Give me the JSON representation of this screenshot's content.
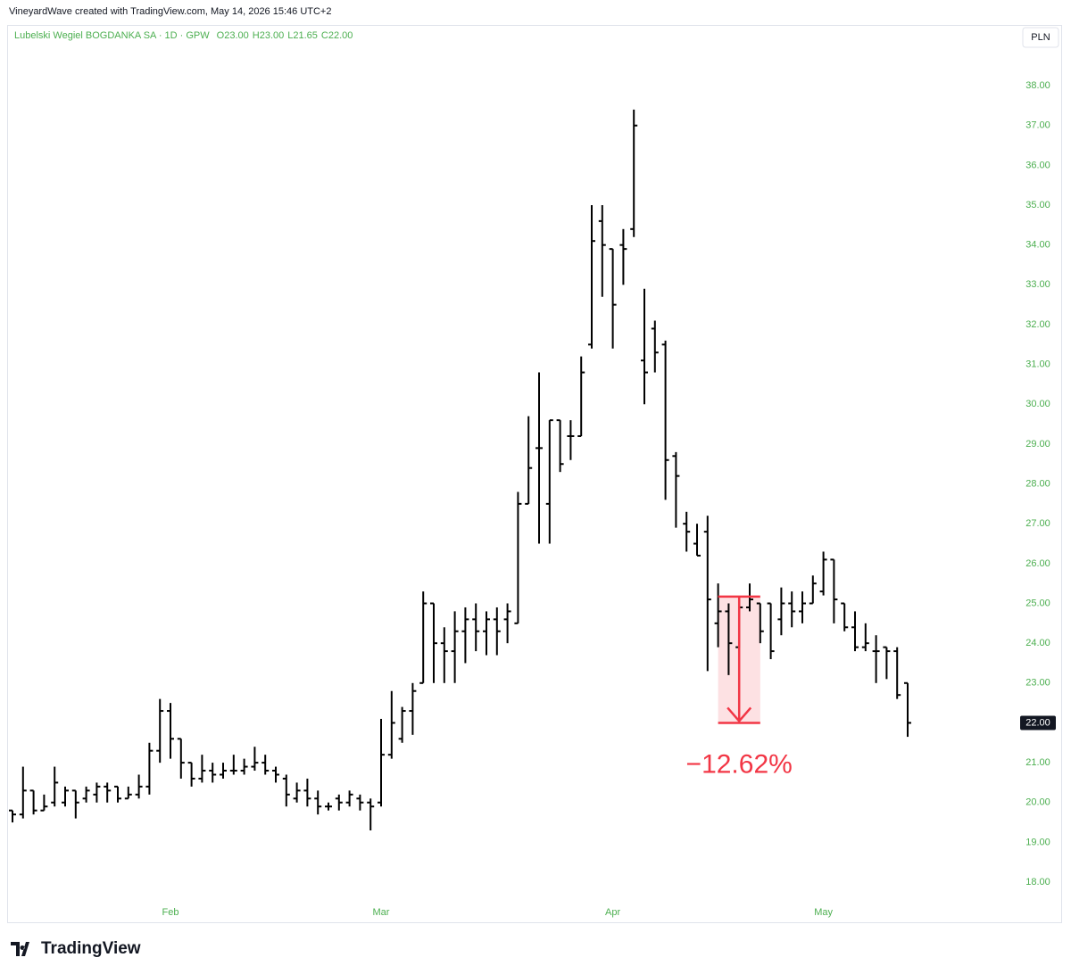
{
  "header": "VineyardWave created with TradingView.com, May 14, 2026 15:46 UTC+2",
  "footer": "TradingView",
  "chart_data": {
    "type": "ohlc",
    "legend_name": "Lubelski Wegiel BOGDANKA SA · 1D · GPW",
    "ohlc_legend": [
      {
        "key": "O",
        "value": 23,
        "label": "23.00"
      },
      {
        "key": "H",
        "value": 23,
        "label": "23.00"
      },
      {
        "key": "L",
        "value": 21.65,
        "label": "21.65"
      },
      {
        "key": "C",
        "value": 22,
        "label": "22.00"
      }
    ],
    "currency": "PLN",
    "color": "#000000",
    "categories": [
      null,
      null,
      null,
      null,
      null,
      null,
      null,
      null,
      null,
      null,
      null,
      null,
      null,
      null,
      null,
      "Feb",
      null,
      null,
      null,
      null,
      null,
      null,
      null,
      null,
      null,
      null,
      null,
      null,
      null,
      null,
      null,
      null,
      null,
      null,
      null,
      "Mar",
      null,
      null,
      null,
      null,
      null,
      null,
      null,
      null,
      null,
      null,
      null,
      null,
      null,
      null,
      null,
      null,
      null,
      null,
      null,
      null,
      null,
      "Apr",
      null,
      null,
      null,
      null,
      null,
      null,
      null,
      null,
      null,
      null,
      null,
      null,
      null,
      null,
      null,
      null,
      null,
      null,
      null,
      "May",
      null,
      null,
      null,
      null,
      null,
      null,
      null,
      null
    ],
    "open": [
      19.8,
      19.7,
      20.3,
      19.8,
      20.0,
      20.0,
      20.3,
      20.1,
      20.2,
      20.4,
      20.4,
      20.1,
      20.2,
      20.4,
      21.3,
      22.3,
      21.6,
      21.0,
      20.6,
      20.8,
      20.7,
      20.8,
      20.8,
      20.9,
      21.0,
      20.8,
      20.6,
      20.1,
      20.3,
      20.1,
      19.9,
      20.1,
      20.0,
      20.1,
      20.0,
      20.0,
      21.2,
      21.6,
      22.3,
      23.0,
      25.0,
      24.0,
      23.8,
      24.3,
      24.6,
      24.3,
      24.6,
      24.6,
      24.5,
      27.5,
      28.9,
      27.5,
      29.6,
      29.2,
      29.2,
      31.5,
      34.6,
      33.9,
      34.0,
      34.4,
      31.1,
      31.9,
      31.5,
      28.7,
      27.0,
      26.5,
      26.8,
      24.5,
      24.8,
      23.9,
      24.9,
      25.0,
      25.0,
      24.6,
      25.0,
      24.8,
      25.0,
      25.3,
      26.1,
      25.0,
      24.4,
      23.9,
      23.8,
      23.9,
      23.8,
      23.0
    ],
    "high": [
      19.8,
      20.9,
      20.3,
      20.2,
      20.9,
      20.4,
      20.3,
      20.4,
      20.5,
      20.5,
      20.4,
      20.4,
      20.7,
      21.5,
      22.6,
      22.5,
      21.6,
      21.0,
      21.2,
      21.0,
      21.0,
      21.2,
      21.1,
      21.4,
      21.2,
      20.9,
      20.7,
      20.5,
      20.6,
      20.3,
      20.0,
      20.2,
      20.3,
      20.2,
      20.1,
      22.1,
      22.8,
      22.4,
      23.0,
      25.3,
      25.0,
      24.4,
      24.8,
      24.9,
      25.0,
      24.8,
      24.9,
      25.0,
      27.8,
      29.7,
      30.8,
      29.6,
      29.6,
      29.6,
      31.2,
      35.0,
      35.0,
      33.9,
      34.4,
      37.4,
      32.9,
      32.1,
      31.6,
      28.8,
      27.3,
      27.0,
      27.2,
      25.5,
      25.0,
      25.1,
      25.5,
      25.0,
      25.0,
      25.4,
      25.3,
      25.3,
      25.7,
      26.3,
      26.1,
      25.0,
      24.8,
      24.5,
      24.2,
      23.9,
      23.9,
      23.0
    ],
    "low": [
      19.5,
      19.6,
      19.7,
      19.8,
      19.9,
      19.9,
      19.6,
      20.0,
      20.0,
      20.0,
      20.0,
      20.1,
      20.1,
      20.2,
      21.0,
      21.1,
      20.6,
      20.4,
      20.5,
      20.5,
      20.6,
      20.7,
      20.7,
      20.8,
      20.7,
      20.5,
      19.9,
      20.0,
      19.9,
      19.7,
      19.8,
      19.8,
      19.9,
      19.8,
      19.3,
      19.9,
      21.1,
      21.5,
      21.7,
      23.0,
      23.0,
      23.0,
      23.0,
      23.5,
      23.8,
      23.7,
      23.7,
      24.0,
      24.5,
      27.5,
      26.5,
      26.5,
      28.3,
      28.6,
      29.2,
      31.4,
      32.7,
      31.4,
      33.0,
      34.2,
      30.0,
      30.8,
      27.6,
      26.9,
      26.3,
      26.2,
      23.3,
      23.9,
      23.2,
      23.9,
      24.8,
      24.0,
      23.6,
      24.2,
      24.4,
      24.5,
      25.0,
      25.2,
      24.5,
      24.3,
      23.8,
      23.8,
      23.0,
      23.1,
      22.6,
      21.65
    ],
    "close": [
      19.7,
      20.3,
      19.8,
      19.9,
      20.5,
      20.3,
      20.0,
      20.3,
      20.4,
      20.3,
      20.1,
      20.2,
      20.4,
      21.3,
      22.3,
      21.6,
      21.0,
      20.6,
      20.8,
      20.7,
      20.8,
      20.8,
      20.9,
      21.0,
      20.8,
      20.7,
      20.2,
      20.3,
      20.1,
      19.9,
      19.9,
      20.0,
      20.2,
      20.0,
      19.9,
      21.2,
      22.0,
      22.3,
      22.8,
      25.0,
      24.0,
      23.8,
      24.3,
      24.6,
      24.3,
      24.6,
      24.3,
      24.8,
      27.5,
      28.4,
      28.9,
      29.6,
      28.5,
      29.2,
      30.8,
      34.1,
      34.0,
      32.5,
      33.9,
      37.0,
      30.8,
      31.3,
      28.6,
      28.2,
      26.8,
      26.2,
      25.1,
      24.8,
      24.0,
      24.9,
      25.1,
      24.3,
      23.8,
      25.0,
      24.8,
      25.0,
      25.5,
      26.1,
      25.1,
      24.4,
      23.9,
      24.0,
      23.8,
      23.8,
      22.7,
      22.0
    ],
    "last_price": {
      "value": 22,
      "label": "22.00"
    },
    "annotation": {
      "label": "−12.62%",
      "from": 25.17,
      "to": 22.0,
      "color": "#f23645"
    },
    "ylim": [
      17.62,
      39.48
    ],
    "yticks": [
      {
        "value": 18,
        "label": "18.00"
      },
      {
        "value": 19,
        "label": "19.00"
      },
      {
        "value": 20,
        "label": "20.00"
      },
      {
        "value": 21,
        "label": "21.00"
      },
      {
        "value": 22,
        "label": "22.00"
      },
      {
        "value": 23,
        "label": "23.00"
      },
      {
        "value": 24,
        "label": "24.00"
      },
      {
        "value": 25,
        "label": "25.00"
      },
      {
        "value": 26,
        "label": "26.00"
      },
      {
        "value": 27,
        "label": "27.00"
      },
      {
        "value": 28,
        "label": "28.00"
      },
      {
        "value": 29,
        "label": "29.00"
      },
      {
        "value": 30,
        "label": "30.00"
      },
      {
        "value": 31,
        "label": "31.00"
      },
      {
        "value": 32,
        "label": "32.00"
      },
      {
        "value": 33,
        "label": "33.00"
      },
      {
        "value": 34,
        "label": "34.00"
      },
      {
        "value": 35,
        "label": "35.00"
      },
      {
        "value": 36,
        "label": "36.00"
      },
      {
        "value": 37,
        "label": "37.00"
      },
      {
        "value": 38,
        "label": "38.00"
      }
    ],
    "grid": false
  }
}
